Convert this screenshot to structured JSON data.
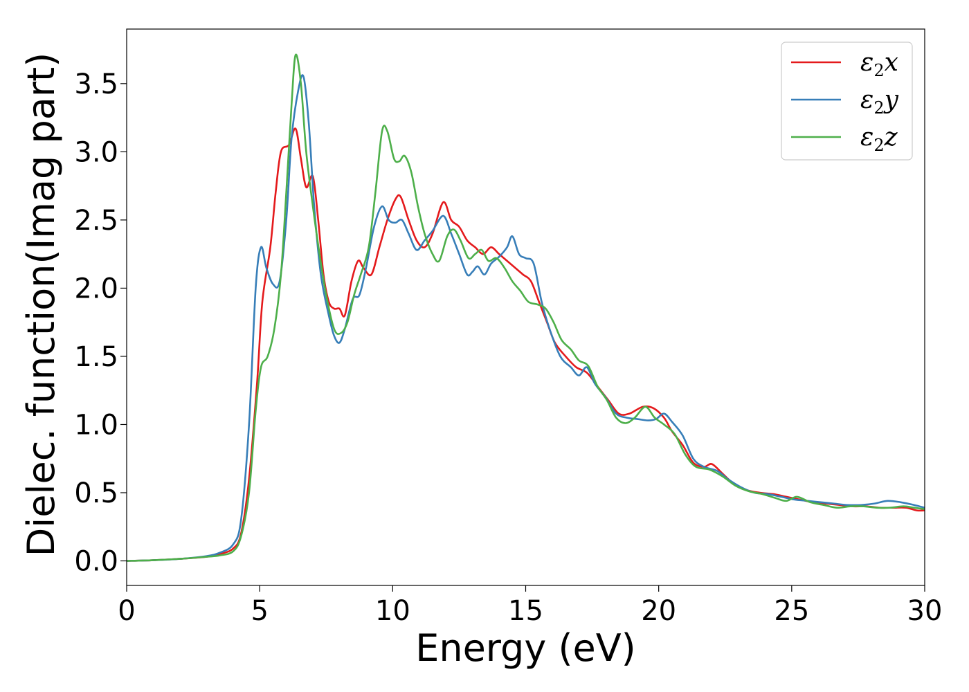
{
  "colors": {
    "x": "#e41a1c",
    "y": "#377eb8",
    "z": "#4daf4a"
  },
  "chart_data": {
    "type": "line",
    "xlabel": "Energy (eV)",
    "ylabel": "Dielec. function(Imag part)",
    "xlim": [
      0,
      30
    ],
    "ylim": [
      -0.18,
      3.9
    ],
    "xticks": [
      0,
      5,
      10,
      15,
      20,
      25,
      30
    ],
    "yticks": [
      0.0,
      0.5,
      1.0,
      1.5,
      2.0,
      2.5,
      3.0,
      3.5
    ],
    "xtick_labels": [
      "0",
      "5",
      "10",
      "15",
      "20",
      "25",
      "30"
    ],
    "ytick_labels": [
      "0.0",
      "0.5",
      "1.0",
      "1.5",
      "2.0",
      "2.5",
      "3.0",
      "3.5"
    ],
    "grid": false,
    "legend_position": "top-right",
    "series": [
      {
        "name": "ε2x",
        "legend_main": "ε",
        "legend_sub": "2",
        "legend_tail": "x",
        "color": "#e41a1c",
        "points": [
          [
            0,
            0.0
          ],
          [
            1,
            0.005
          ],
          [
            2,
            0.015
          ],
          [
            3,
            0.03
          ],
          [
            3.5,
            0.05
          ],
          [
            4,
            0.09
          ],
          [
            4.3,
            0.2
          ],
          [
            4.6,
            0.6
          ],
          [
            4.9,
            1.3
          ],
          [
            5.1,
            1.9
          ],
          [
            5.4,
            2.3
          ],
          [
            5.6,
            2.7
          ],
          [
            5.8,
            3.0
          ],
          [
            6.1,
            3.05
          ],
          [
            6.35,
            3.17
          ],
          [
            6.55,
            2.95
          ],
          [
            6.75,
            2.74
          ],
          [
            7.0,
            2.82
          ],
          [
            7.2,
            2.5
          ],
          [
            7.4,
            2.1
          ],
          [
            7.6,
            1.9
          ],
          [
            7.8,
            1.85
          ],
          [
            8.0,
            1.85
          ],
          [
            8.2,
            1.8
          ],
          [
            8.45,
            2.05
          ],
          [
            8.7,
            2.2
          ],
          [
            8.9,
            2.15
          ],
          [
            9.2,
            2.1
          ],
          [
            9.5,
            2.3
          ],
          [
            9.8,
            2.5
          ],
          [
            10.1,
            2.65
          ],
          [
            10.3,
            2.67
          ],
          [
            10.6,
            2.5
          ],
          [
            10.9,
            2.35
          ],
          [
            11.2,
            2.3
          ],
          [
            11.5,
            2.4
          ],
          [
            11.9,
            2.63
          ],
          [
            12.2,
            2.5
          ],
          [
            12.5,
            2.45
          ],
          [
            12.8,
            2.35
          ],
          [
            13.1,
            2.3
          ],
          [
            13.4,
            2.25
          ],
          [
            13.7,
            2.3
          ],
          [
            14.0,
            2.25
          ],
          [
            14.3,
            2.2
          ],
          [
            14.6,
            2.15
          ],
          [
            14.9,
            2.1
          ],
          [
            15.2,
            2.05
          ],
          [
            15.5,
            1.9
          ],
          [
            15.8,
            1.75
          ],
          [
            16.1,
            1.6
          ],
          [
            16.5,
            1.5
          ],
          [
            16.9,
            1.42
          ],
          [
            17.3,
            1.38
          ],
          [
            17.7,
            1.28
          ],
          [
            18.1,
            1.18
          ],
          [
            18.5,
            1.08
          ],
          [
            18.9,
            1.08
          ],
          [
            19.4,
            1.13
          ],
          [
            19.8,
            1.12
          ],
          [
            20.2,
            1.05
          ],
          [
            20.5,
            0.95
          ],
          [
            20.9,
            0.85
          ],
          [
            21.3,
            0.72
          ],
          [
            21.7,
            0.69
          ],
          [
            22.0,
            0.71
          ],
          [
            22.4,
            0.64
          ],
          [
            22.8,
            0.57
          ],
          [
            23.3,
            0.52
          ],
          [
            23.8,
            0.5
          ],
          [
            24.3,
            0.49
          ],
          [
            24.8,
            0.47
          ],
          [
            25.3,
            0.45
          ],
          [
            25.8,
            0.43
          ],
          [
            26.3,
            0.42
          ],
          [
            26.8,
            0.41
          ],
          [
            27.3,
            0.4
          ],
          [
            27.8,
            0.4
          ],
          [
            28.3,
            0.39
          ],
          [
            28.8,
            0.39
          ],
          [
            29.3,
            0.39
          ],
          [
            29.7,
            0.37
          ],
          [
            30,
            0.37
          ]
        ]
      },
      {
        "name": "ε2y",
        "legend_main": "ε",
        "legend_sub": "2",
        "legend_tail": "y",
        "color": "#377eb8",
        "points": [
          [
            0,
            0.0
          ],
          [
            1,
            0.005
          ],
          [
            2,
            0.015
          ],
          [
            3,
            0.035
          ],
          [
            3.5,
            0.06
          ],
          [
            4,
            0.12
          ],
          [
            4.3,
            0.3
          ],
          [
            4.6,
            1.0
          ],
          [
            4.85,
            2.0
          ],
          [
            5.05,
            2.3
          ],
          [
            5.25,
            2.15
          ],
          [
            5.5,
            2.03
          ],
          [
            5.75,
            2.05
          ],
          [
            6.0,
            2.5
          ],
          [
            6.2,
            3.1
          ],
          [
            6.45,
            3.45
          ],
          [
            6.65,
            3.55
          ],
          [
            6.85,
            3.2
          ],
          [
            7.05,
            2.6
          ],
          [
            7.3,
            2.1
          ],
          [
            7.6,
            1.8
          ],
          [
            7.8,
            1.65
          ],
          [
            8.0,
            1.6
          ],
          [
            8.2,
            1.7
          ],
          [
            8.5,
            1.92
          ],
          [
            8.75,
            1.95
          ],
          [
            9.0,
            2.15
          ],
          [
            9.3,
            2.45
          ],
          [
            9.6,
            2.6
          ],
          [
            9.85,
            2.5
          ],
          [
            10.1,
            2.48
          ],
          [
            10.35,
            2.5
          ],
          [
            10.6,
            2.4
          ],
          [
            10.9,
            2.28
          ],
          [
            11.2,
            2.35
          ],
          [
            11.5,
            2.42
          ],
          [
            11.9,
            2.53
          ],
          [
            12.2,
            2.4
          ],
          [
            12.5,
            2.25
          ],
          [
            12.8,
            2.1
          ],
          [
            13.0,
            2.12
          ],
          [
            13.2,
            2.16
          ],
          [
            13.45,
            2.1
          ],
          [
            13.7,
            2.18
          ],
          [
            14.0,
            2.23
          ],
          [
            14.3,
            2.3
          ],
          [
            14.5,
            2.38
          ],
          [
            14.75,
            2.25
          ],
          [
            15.0,
            2.22
          ],
          [
            15.3,
            2.18
          ],
          [
            15.6,
            1.9
          ],
          [
            15.9,
            1.7
          ],
          [
            16.3,
            1.5
          ],
          [
            16.7,
            1.42
          ],
          [
            17.0,
            1.36
          ],
          [
            17.3,
            1.42
          ],
          [
            17.6,
            1.3
          ],
          [
            18.0,
            1.2
          ],
          [
            18.4,
            1.08
          ],
          [
            18.8,
            1.05
          ],
          [
            19.2,
            1.04
          ],
          [
            19.6,
            1.03
          ],
          [
            19.9,
            1.04
          ],
          [
            20.2,
            1.08
          ],
          [
            20.5,
            1.02
          ],
          [
            20.9,
            0.92
          ],
          [
            21.3,
            0.75
          ],
          [
            21.7,
            0.69
          ],
          [
            22.2,
            0.66
          ],
          [
            22.6,
            0.6
          ],
          [
            23.1,
            0.54
          ],
          [
            23.6,
            0.5
          ],
          [
            24.1,
            0.49
          ],
          [
            24.6,
            0.47
          ],
          [
            25.1,
            0.45
          ],
          [
            25.6,
            0.44
          ],
          [
            26.1,
            0.43
          ],
          [
            26.6,
            0.42
          ],
          [
            27.1,
            0.41
          ],
          [
            27.6,
            0.41
          ],
          [
            28.1,
            0.42
          ],
          [
            28.6,
            0.44
          ],
          [
            29.1,
            0.43
          ],
          [
            29.6,
            0.41
          ],
          [
            30,
            0.39
          ]
        ]
      },
      {
        "name": "ε2z",
        "legend_main": "ε",
        "legend_sub": "2",
        "legend_tail": "z",
        "color": "#4daf4a",
        "points": [
          [
            0,
            0.0
          ],
          [
            1,
            0.005
          ],
          [
            2,
            0.015
          ],
          [
            3,
            0.03
          ],
          [
            3.5,
            0.04
          ],
          [
            4,
            0.07
          ],
          [
            4.3,
            0.18
          ],
          [
            4.6,
            0.5
          ],
          [
            4.85,
            1.1
          ],
          [
            5.05,
            1.42
          ],
          [
            5.3,
            1.5
          ],
          [
            5.55,
            1.7
          ],
          [
            5.8,
            2.1
          ],
          [
            6.0,
            2.7
          ],
          [
            6.2,
            3.35
          ],
          [
            6.35,
            3.71
          ],
          [
            6.55,
            3.5
          ],
          [
            6.75,
            3.0
          ],
          [
            7.0,
            2.6
          ],
          [
            7.25,
            2.25
          ],
          [
            7.5,
            1.95
          ],
          [
            7.8,
            1.7
          ],
          [
            8.05,
            1.67
          ],
          [
            8.3,
            1.75
          ],
          [
            8.55,
            1.95
          ],
          [
            8.8,
            2.1
          ],
          [
            9.1,
            2.3
          ],
          [
            9.35,
            2.7
          ],
          [
            9.6,
            3.15
          ],
          [
            9.8,
            3.15
          ],
          [
            10.05,
            2.95
          ],
          [
            10.25,
            2.93
          ],
          [
            10.45,
            2.97
          ],
          [
            10.7,
            2.85
          ],
          [
            10.95,
            2.6
          ],
          [
            11.2,
            2.4
          ],
          [
            11.5,
            2.25
          ],
          [
            11.75,
            2.2
          ],
          [
            12.05,
            2.38
          ],
          [
            12.3,
            2.43
          ],
          [
            12.55,
            2.35
          ],
          [
            12.85,
            2.22
          ],
          [
            13.1,
            2.25
          ],
          [
            13.35,
            2.28
          ],
          [
            13.6,
            2.2
          ],
          [
            13.9,
            2.22
          ],
          [
            14.2,
            2.15
          ],
          [
            14.5,
            2.05
          ],
          [
            14.8,
            1.98
          ],
          [
            15.1,
            1.9
          ],
          [
            15.45,
            1.88
          ],
          [
            15.75,
            1.85
          ],
          [
            16.05,
            1.75
          ],
          [
            16.35,
            1.62
          ],
          [
            16.7,
            1.55
          ],
          [
            17.0,
            1.47
          ],
          [
            17.35,
            1.43
          ],
          [
            17.7,
            1.28
          ],
          [
            18.05,
            1.18
          ],
          [
            18.4,
            1.05
          ],
          [
            18.75,
            1.01
          ],
          [
            19.1,
            1.05
          ],
          [
            19.5,
            1.13
          ],
          [
            19.85,
            1.05
          ],
          [
            20.2,
            1.0
          ],
          [
            20.6,
            0.93
          ],
          [
            21.0,
            0.78
          ],
          [
            21.4,
            0.69
          ],
          [
            21.9,
            0.67
          ],
          [
            22.4,
            0.62
          ],
          [
            22.9,
            0.55
          ],
          [
            23.4,
            0.51
          ],
          [
            23.9,
            0.49
          ],
          [
            24.4,
            0.46
          ],
          [
            24.8,
            0.44
          ],
          [
            25.2,
            0.47
          ],
          [
            25.7,
            0.43
          ],
          [
            26.2,
            0.41
          ],
          [
            26.7,
            0.39
          ],
          [
            27.2,
            0.4
          ],
          [
            27.7,
            0.4
          ],
          [
            28.2,
            0.39
          ],
          [
            28.7,
            0.39
          ],
          [
            29.2,
            0.4
          ],
          [
            29.6,
            0.39
          ],
          [
            30,
            0.38
          ]
        ]
      }
    ]
  }
}
